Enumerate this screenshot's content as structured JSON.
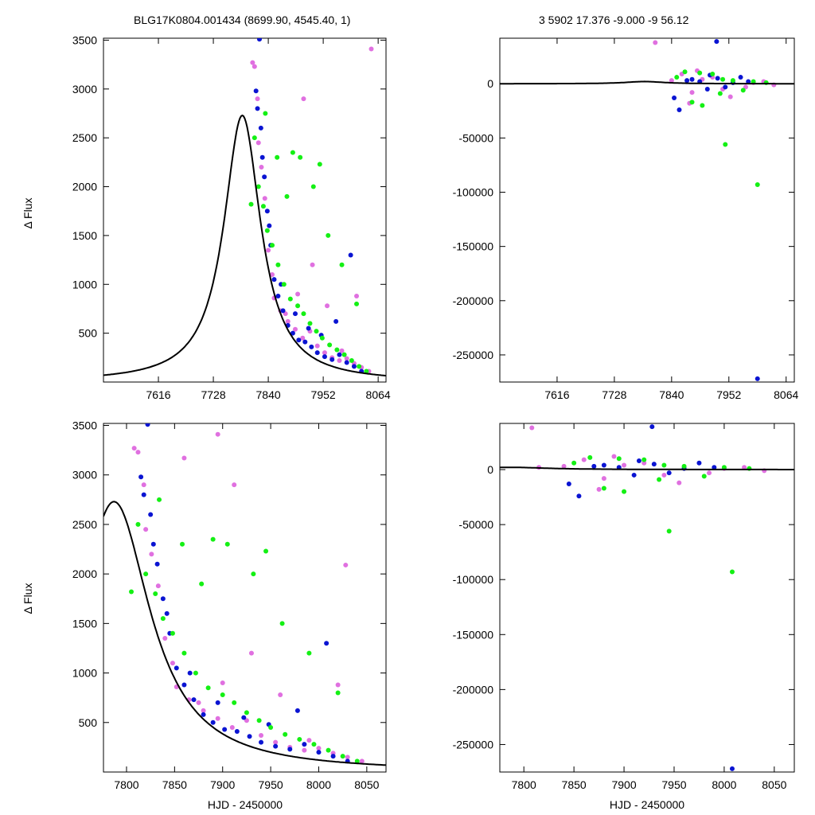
{
  "header": {
    "left": "BLG17K0804.001434 (8699.90, 4545.40,     1)",
    "right": "3   5902   17.376   -9.000   -9   56.12"
  },
  "colors": {
    "pink": "#e070e0",
    "blue": "#0a14d2",
    "green": "#14f014",
    "model": "#000000"
  },
  "chart_data": [
    {
      "id": "top-left",
      "type": "scatter",
      "xlabel": "",
      "ylabel": "Δ Flux",
      "xlim": [
        7504,
        8080
      ],
      "ylim": [
        0,
        3520
      ],
      "xticks": [
        7616,
        7728,
        7840,
        7952,
        8064
      ],
      "yticks": [
        500,
        1000,
        1500,
        2000,
        2500,
        3000,
        3500
      ],
      "series": [
        {
          "color": "pink",
          "x": [
            7808,
            7812,
            7820,
            7833,
            7840,
            7852,
            7865,
            7880,
            7895,
            7910,
            7925,
            7940,
            7955,
            7970,
            7985,
            8000,
            8015,
            8030,
            8045,
            7818,
            7826,
            7848,
            7875,
            7900,
            7930,
            7960,
            7990,
            8020,
            7912,
            8050
          ],
          "y": [
            3270,
            3230,
            2450,
            1880,
            1350,
            860,
            730,
            620,
            540,
            450,
            520,
            370,
            300,
            250,
            220,
            240,
            190,
            150,
            110,
            2900,
            2200,
            1100,
            700,
            900,
            1200,
            780,
            320,
            880,
            2900,
            3410
          ]
        },
        {
          "color": "blue",
          "x": [
            7822,
            7815,
            7825,
            7832,
            7838,
            7845,
            7852,
            7860,
            7870,
            7880,
            7890,
            7902,
            7915,
            7928,
            7940,
            7955,
            7970,
            7985,
            8000,
            8015,
            8030,
            7818,
            7828,
            7842,
            7866,
            7895,
            7922,
            7948,
            7978,
            8008
          ],
          "y": [
            3510,
            2980,
            2600,
            2100,
            1750,
            1400,
            1050,
            880,
            730,
            580,
            500,
            430,
            410,
            360,
            300,
            260,
            230,
            280,
            200,
            160,
            110,
            2800,
            2300,
            1600,
            1000,
            700,
            550,
            480,
            620,
            1300
          ]
        },
        {
          "color": "green",
          "x": [
            7805,
            7812,
            7820,
            7830,
            7838,
            7848,
            7860,
            7872,
            7885,
            7900,
            7912,
            7925,
            7938,
            7950,
            7965,
            7980,
            7995,
            8010,
            8025,
            8040,
            7834,
            7858,
            7878,
            7905,
            7932,
            7962,
            7990,
            8020,
            7890,
            7945
          ],
          "y": [
            1820,
            2500,
            2000,
            1800,
            1550,
            1400,
            1200,
            1000,
            850,
            780,
            700,
            600,
            520,
            450,
            380,
            330,
            280,
            220,
            160,
            110,
            2750,
            2300,
            1900,
            2300,
            2000,
            1500,
            1200,
            800,
            2350,
            2230
          ]
        }
      ],
      "model_peak": {
        "t0": 7787,
        "peak": 2730,
        "tE": 58
      }
    },
    {
      "id": "top-right",
      "type": "scatter",
      "xlabel": "",
      "ylabel": "",
      "xlim": [
        7504,
        8080
      ],
      "ylim": [
        -275000,
        42000
      ],
      "xticks": [
        7616,
        7728,
        7840,
        7952,
        8064
      ],
      "yticks": [
        0,
        -50000,
        -100000,
        -150000,
        -200000,
        -250000
      ],
      "series": [
        {
          "color": "pink",
          "x": [
            7808,
            7840,
            7860,
            7880,
            7900,
            7920,
            7940,
            7960,
            7985,
            8000,
            8020,
            8040,
            7875,
            7890,
            7955
          ],
          "y": [
            38000,
            3000,
            9000,
            -8000,
            4000,
            6000,
            -5000,
            2000,
            -3000,
            1000,
            2000,
            -1000,
            -18000,
            12000,
            -12000
          ]
        },
        {
          "color": "blue",
          "x": [
            7928,
            7845,
            7855,
            7870,
            7895,
            7915,
            7930,
            7945,
            7960,
            7975,
            7990,
            8008,
            7880,
            7910
          ],
          "y": [
            39000,
            -13000,
            -24000,
            3000,
            2000,
            8000,
            5000,
            -3000,
            1000,
            6000,
            2000,
            -272000,
            4000,
            -5000
          ]
        },
        {
          "color": "green",
          "x": [
            7866,
            7880,
            7900,
            7920,
            7940,
            7945,
            7960,
            7980,
            8000,
            8008,
            8025,
            7850,
            7895,
            7935
          ],
          "y": [
            11000,
            -17000,
            -20000,
            9000,
            4000,
            -56000,
            3000,
            -6000,
            2000,
            -93000,
            1000,
            6000,
            10000,
            -9000
          ]
        }
      ],
      "model_peak": {
        "t0": 7787,
        "peak": 2730,
        "tE": 58
      }
    },
    {
      "id": "bottom-left",
      "type": "scatter",
      "xlabel": "HJD - 2450000",
      "ylabel": "Δ Flux",
      "xlim": [
        7776,
        8070
      ],
      "ylim": [
        0,
        3520
      ],
      "xticks": [
        7800,
        7850,
        7900,
        7950,
        8000,
        8050
      ],
      "yticks": [
        500,
        1000,
        1500,
        2000,
        2500,
        3000,
        3500
      ],
      "series": [
        {
          "color": "pink",
          "x": [
            7808,
            7812,
            7820,
            7833,
            7840,
            7852,
            7865,
            7880,
            7895,
            7910,
            7925,
            7940,
            7955,
            7970,
            7985,
            8000,
            8015,
            8030,
            8045,
            7818,
            7826,
            7848,
            7875,
            7900,
            7930,
            7960,
            7990,
            8020,
            7912,
            8028,
            7895,
            7860
          ],
          "y": [
            3270,
            3230,
            2450,
            1880,
            1350,
            860,
            730,
            620,
            540,
            450,
            520,
            370,
            300,
            250,
            220,
            240,
            190,
            150,
            110,
            2900,
            2200,
            1100,
            700,
            900,
            1200,
            780,
            320,
            880,
            2900,
            2090,
            3410,
            3170
          ]
        },
        {
          "color": "blue",
          "x": [
            7822,
            7815,
            7825,
            7832,
            7838,
            7845,
            7852,
            7860,
            7870,
            7880,
            7890,
            7902,
            7915,
            7928,
            7940,
            7955,
            7970,
            7985,
            8000,
            8015,
            8030,
            7818,
            7828,
            7842,
            7866,
            7895,
            7922,
            7948,
            7978,
            8008
          ],
          "y": [
            3510,
            2980,
            2600,
            2100,
            1750,
            1400,
            1050,
            880,
            730,
            580,
            500,
            430,
            410,
            360,
            300,
            260,
            230,
            280,
            200,
            160,
            110,
            2800,
            2300,
            1600,
            1000,
            700,
            550,
            480,
            620,
            1300
          ]
        },
        {
          "color": "green",
          "x": [
            7805,
            7812,
            7820,
            7830,
            7838,
            7848,
            7860,
            7872,
            7885,
            7900,
            7912,
            7925,
            7938,
            7950,
            7965,
            7980,
            7995,
            8010,
            8025,
            8040,
            7834,
            7858,
            7878,
            7905,
            7932,
            7962,
            7990,
            8020,
            7890,
            7945
          ],
          "y": [
            1820,
            2500,
            2000,
            1800,
            1550,
            1400,
            1200,
            1000,
            850,
            780,
            700,
            600,
            520,
            450,
            380,
            330,
            280,
            220,
            160,
            110,
            2750,
            2300,
            1900,
            2300,
            2000,
            1500,
            1200,
            800,
            2350,
            2230
          ]
        }
      ],
      "model_peak": {
        "t0": 7787,
        "peak": 2730,
        "tE": 58
      }
    },
    {
      "id": "bottom-right",
      "type": "scatter",
      "xlabel": "HJD - 2450000",
      "ylabel": "",
      "xlim": [
        7776,
        8070
      ],
      "ylim": [
        -275000,
        42000
      ],
      "xticks": [
        7800,
        7850,
        7900,
        7950,
        8000,
        8050
      ],
      "yticks": [
        0,
        -50000,
        -100000,
        -150000,
        -200000,
        -250000
      ],
      "series": [
        {
          "color": "pink",
          "x": [
            7808,
            7840,
            7860,
            7880,
            7900,
            7920,
            7940,
            7960,
            7985,
            8000,
            8020,
            8040,
            7875,
            7890,
            7955,
            7815
          ],
          "y": [
            38000,
            3000,
            9000,
            -8000,
            4000,
            6000,
            -5000,
            2000,
            -3000,
            1000,
            2000,
            -1000,
            -18000,
            12000,
            -12000,
            2000
          ]
        },
        {
          "color": "blue",
          "x": [
            7928,
            7845,
            7855,
            7870,
            7895,
            7915,
            7930,
            7945,
            7960,
            7975,
            7990,
            8008,
            7880,
            7910
          ],
          "y": [
            39000,
            -13000,
            -24000,
            3000,
            2000,
            8000,
            5000,
            -3000,
            1000,
            6000,
            2000,
            -272000,
            4000,
            -5000
          ]
        },
        {
          "color": "green",
          "x": [
            7866,
            7880,
            7900,
            7920,
            7940,
            7945,
            7960,
            7980,
            8000,
            8008,
            8025,
            7850,
            7895,
            7935
          ],
          "y": [
            11000,
            -17000,
            -20000,
            9000,
            4000,
            -56000,
            3000,
            -6000,
            2000,
            -93000,
            1000,
            6000,
            10000,
            -9000
          ]
        }
      ],
      "model_peak": {
        "t0": 7787,
        "peak": 2730,
        "tE": 58
      }
    }
  ]
}
